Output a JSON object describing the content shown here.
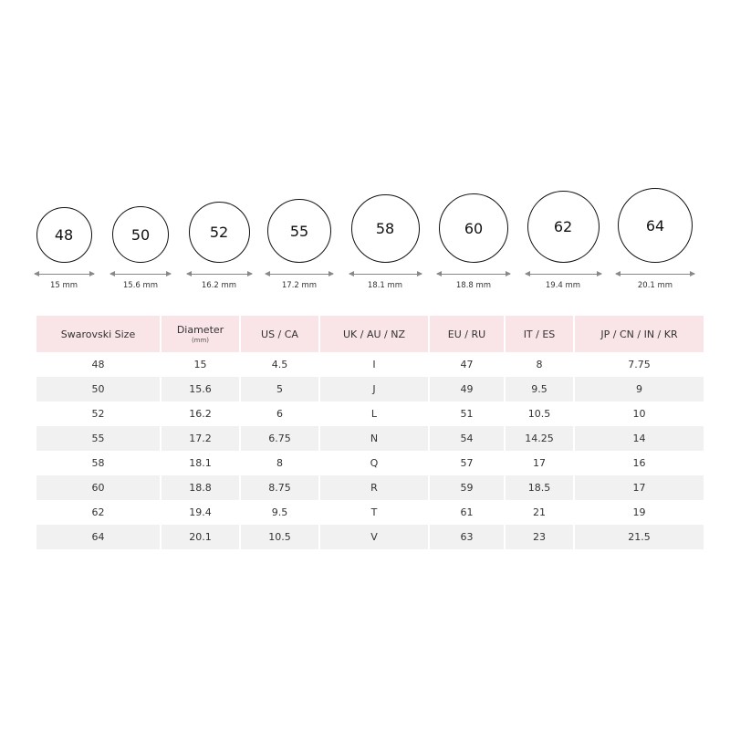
{
  "rings": [
    {
      "size": "48",
      "diameter_label": "15 mm"
    },
    {
      "size": "50",
      "diameter_label": "15.6 mm"
    },
    {
      "size": "52",
      "diameter_label": "16.2 mm"
    },
    {
      "size": "55",
      "diameter_label": "17.2 mm"
    },
    {
      "size": "58",
      "diameter_label": "18.1 mm"
    },
    {
      "size": "60",
      "diameter_label": "18.8 mm"
    },
    {
      "size": "62",
      "diameter_label": "19.4 mm"
    },
    {
      "size": "64",
      "diameter_label": "20.1 mm"
    }
  ],
  "table": {
    "headers": [
      {
        "label": "Swarovski Size",
        "sub": ""
      },
      {
        "label": "Diameter",
        "sub": "(mm)"
      },
      {
        "label": "US / CA",
        "sub": ""
      },
      {
        "label": "UK / AU / NZ",
        "sub": ""
      },
      {
        "label": "EU / RU",
        "sub": ""
      },
      {
        "label": "IT / ES",
        "sub": ""
      },
      {
        "label": "JP / CN / IN / KR",
        "sub": ""
      }
    ],
    "rows": [
      [
        "48",
        "15",
        "4.5",
        "I",
        "47",
        "8",
        "7.75"
      ],
      [
        "50",
        "15.6",
        "5",
        "J",
        "49",
        "9.5",
        "9"
      ],
      [
        "52",
        "16.2",
        "6",
        "L",
        "51",
        "10.5",
        "10"
      ],
      [
        "55",
        "17.2",
        "6.75",
        "N",
        "54",
        "14.25",
        "14"
      ],
      [
        "58",
        "18.1",
        "8",
        "Q",
        "57",
        "17",
        "16"
      ],
      [
        "60",
        "18.8",
        "8.75",
        "R",
        "59",
        "18.5",
        "17"
      ],
      [
        "62",
        "19.4",
        "9.5",
        "T",
        "61",
        "21",
        "19"
      ],
      [
        "64",
        "20.1",
        "10.5",
        "V",
        "63",
        "23",
        "21.5"
      ]
    ]
  },
  "colors": {
    "header_bg": "#f9e4e8",
    "alt_row_bg": "#f1f1f1"
  }
}
